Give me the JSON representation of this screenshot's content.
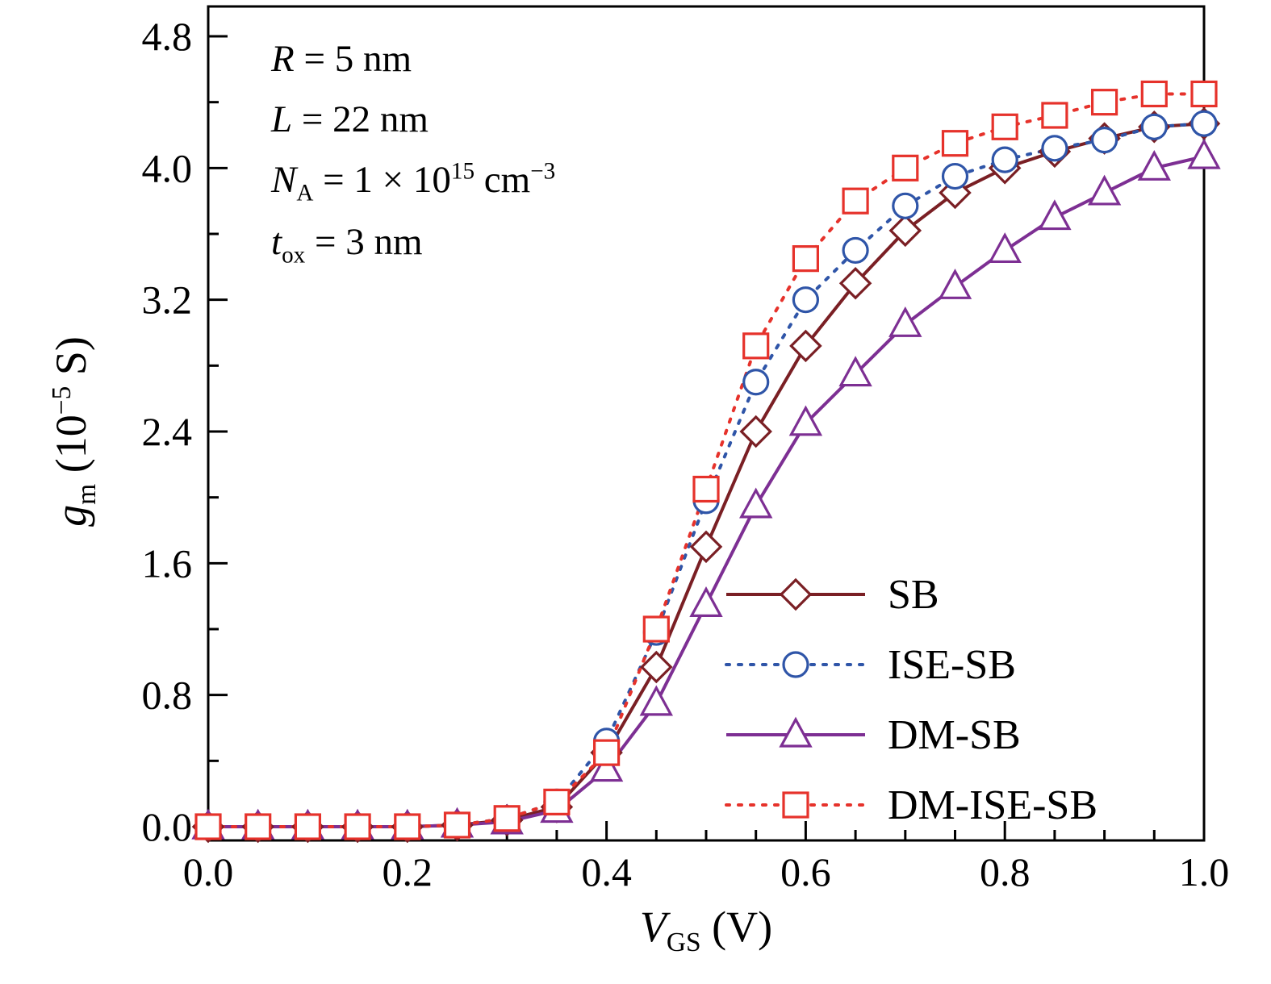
{
  "chart_data": {
    "type": "line",
    "title": "",
    "xlabel": "*V*_[GS] (V)",
    "ylabel": "*g*_[m] (10^[−5] S)",
    "xlim": [
      0,
      1.0
    ],
    "ylim": [
      0,
      4.8
    ],
    "xticks": [
      0,
      0.2,
      0.4,
      0.6,
      0.8,
      1.0
    ],
    "yticks": [
      0,
      0.8,
      1.6,
      2.4,
      3.2,
      4.0,
      4.8
    ],
    "x_minor_step": 0.05,
    "y_minor_step": 0.4,
    "grid": false,
    "legend_position": "lower right",
    "annotations": [
      "*R* = 5 nm",
      "*L* = 22 nm",
      "*N*_[A] =  1 × 10^[15] cm^[−3]",
      "*t*_[ox] = 3 nm"
    ],
    "x": [
      0.0,
      0.05,
      0.1,
      0.15,
      0.2,
      0.25,
      0.3,
      0.35,
      0.4,
      0.45,
      0.5,
      0.55,
      0.6,
      0.65,
      0.7,
      0.75,
      0.8,
      0.85,
      0.9,
      0.95,
      1.0
    ],
    "series": [
      {
        "name": "SB",
        "color": "#7a1f24",
        "line": "solid",
        "marker": "diamond",
        "values": [
          0.0,
          0.0,
          0.0,
          0.0,
          0.0,
          0.01,
          0.04,
          0.12,
          0.45,
          0.97,
          1.7,
          2.4,
          2.92,
          3.3,
          3.62,
          3.85,
          4.0,
          4.1,
          4.18,
          4.25,
          4.27
        ]
      },
      {
        "name": "ISE-SB",
        "color": "#2f55a8",
        "line": "dotted",
        "marker": "circle",
        "values": [
          0.0,
          0.0,
          0.0,
          0.0,
          0.0,
          0.01,
          0.05,
          0.15,
          0.52,
          1.18,
          1.98,
          2.7,
          3.2,
          3.5,
          3.77,
          3.95,
          4.05,
          4.12,
          4.17,
          4.25,
          4.27
        ]
      },
      {
        "name": "DM-SB",
        "color": "#7d2f93",
        "line": "solid",
        "marker": "triangle",
        "values": [
          0.0,
          0.0,
          0.0,
          0.0,
          0.0,
          0.01,
          0.03,
          0.1,
          0.35,
          0.75,
          1.35,
          1.95,
          2.45,
          2.75,
          3.05,
          3.28,
          3.5,
          3.7,
          3.85,
          4.0,
          4.07
        ]
      },
      {
        "name": "DM-ISE-SB",
        "color": "#e6322b",
        "line": "dotted",
        "marker": "square",
        "values": [
          0.0,
          0.0,
          0.0,
          0.0,
          0.0,
          0.01,
          0.05,
          0.15,
          0.45,
          1.2,
          2.05,
          2.92,
          3.45,
          3.8,
          4.0,
          4.15,
          4.25,
          4.32,
          4.4,
          4.45,
          4.45
        ]
      }
    ]
  }
}
